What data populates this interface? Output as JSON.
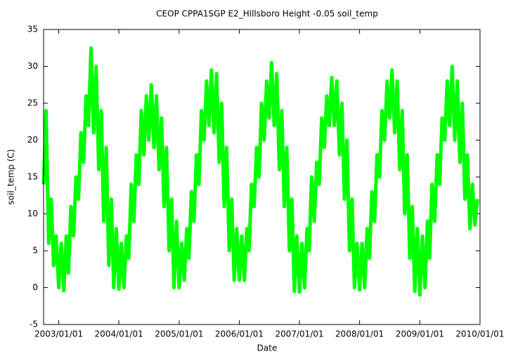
{
  "chart_data": {
    "type": "line",
    "title": "CEOP CPPA1SGP E2_Hillsboro Height -0.05 soil_temp",
    "x_label": "Date",
    "y_label": "soil_temp (C)",
    "xlim": [
      "2002/10/01",
      "2010/01/01"
    ],
    "xticks": [
      "2003/01/01",
      "2004/01/01",
      "2005/01/01",
      "2006/01/01",
      "2007/01/01",
      "2008/01/01",
      "2009/01/01",
      "2010/01/01"
    ],
    "ylim": [
      -5,
      35
    ],
    "yticks": [
      -5,
      0,
      5,
      10,
      15,
      20,
      25,
      30,
      35
    ],
    "grid": false,
    "x": [
      "2002/10/01",
      "2002/10/16",
      "2002/11/01",
      "2002/11/16",
      "2002/12/01",
      "2002/12/16",
      "2003/01/01",
      "2003/01/16",
      "2003/02/01",
      "2003/02/16",
      "2003/03/01",
      "2003/03/16",
      "2003/04/01",
      "2003/04/16",
      "2003/05/01",
      "2003/05/16",
      "2003/06/01",
      "2003/06/16",
      "2003/07/01",
      "2003/07/16",
      "2003/08/01",
      "2003/08/16",
      "2003/09/01",
      "2003/09/16",
      "2003/10/01",
      "2003/10/16",
      "2003/11/01",
      "2003/11/16",
      "2003/12/01",
      "2003/12/16",
      "2004/01/01",
      "2004/01/16",
      "2004/02/01",
      "2004/02/16",
      "2004/03/01",
      "2004/03/16",
      "2004/04/01",
      "2004/04/16",
      "2004/05/01",
      "2004/05/16",
      "2004/06/01",
      "2004/06/16",
      "2004/07/01",
      "2004/07/16",
      "2004/08/01",
      "2004/08/16",
      "2004/09/01",
      "2004/09/16",
      "2004/10/01",
      "2004/10/16",
      "2004/11/01",
      "2004/11/16",
      "2004/12/01",
      "2004/12/16",
      "2005/01/01",
      "2005/01/16",
      "2005/02/01",
      "2005/02/16",
      "2005/03/01",
      "2005/03/16",
      "2005/04/01",
      "2005/04/16",
      "2005/05/01",
      "2005/05/16",
      "2005/06/01",
      "2005/06/16",
      "2005/07/01",
      "2005/07/16",
      "2005/08/01",
      "2005/08/16",
      "2005/09/01",
      "2005/09/16",
      "2005/10/01",
      "2005/10/16",
      "2005/11/01",
      "2005/11/16",
      "2005/12/01",
      "2005/12/16",
      "2006/01/01",
      "2006/01/16",
      "2006/02/01",
      "2006/02/16",
      "2006/03/01",
      "2006/03/16",
      "2006/04/01",
      "2006/04/16",
      "2006/05/01",
      "2006/05/16",
      "2006/06/01",
      "2006/06/16",
      "2006/07/01",
      "2006/07/16",
      "2006/08/01",
      "2006/08/16",
      "2006/09/01",
      "2006/09/16",
      "2006/10/01",
      "2006/10/16",
      "2006/11/01",
      "2006/11/16",
      "2006/12/01",
      "2006/12/16",
      "2007/01/01",
      "2007/01/16",
      "2007/02/01",
      "2007/02/16",
      "2007/03/01",
      "2007/03/16",
      "2007/04/01",
      "2007/04/16",
      "2007/05/01",
      "2007/05/16",
      "2007/06/01",
      "2007/06/16",
      "2007/07/01",
      "2007/07/16",
      "2007/08/01",
      "2007/08/16",
      "2007/09/01",
      "2007/09/16",
      "2007/10/01",
      "2007/10/16",
      "2007/11/01",
      "2007/11/16",
      "2007/12/01",
      "2007/12/16",
      "2008/01/01",
      "2008/01/16",
      "2008/02/01",
      "2008/02/16",
      "2008/03/01",
      "2008/03/16",
      "2008/04/01",
      "2008/04/16",
      "2008/05/01",
      "2008/05/16",
      "2008/06/01",
      "2008/06/16",
      "2008/07/01",
      "2008/07/16",
      "2008/08/01",
      "2008/08/16",
      "2008/09/01",
      "2008/09/16",
      "2008/10/01",
      "2008/10/16",
      "2008/11/01",
      "2008/11/16",
      "2008/12/01",
      "2008/12/16",
      "2009/01/01",
      "2009/01/16",
      "2009/02/01",
      "2009/02/16",
      "2009/03/01",
      "2009/03/16",
      "2009/04/01",
      "2009/04/16",
      "2009/05/01",
      "2009/05/16",
      "2009/06/01",
      "2009/06/16",
      "2009/07/01",
      "2009/07/16",
      "2009/08/01",
      "2009/08/16",
      "2009/09/01",
      "2009/09/16",
      "2009/10/01",
      "2009/10/16",
      "2009/11/01",
      "2009/11/16",
      "2009/12/01",
      "2009/12/16"
    ],
    "series": [
      {
        "color": "#00ff00",
        "values": [
          14,
          24,
          6,
          12,
          3,
          7,
          0,
          6,
          -0.4,
          7,
          2,
          11,
          7,
          15,
          12,
          21,
          17,
          26,
          22,
          32.5,
          21,
          30,
          16,
          24,
          9,
          19,
          3,
          12,
          0,
          8,
          -0.2,
          6,
          0,
          7,
          4,
          14,
          9,
          18,
          14,
          24,
          18,
          26,
          20,
          27.5,
          19,
          26,
          16,
          23,
          11,
          19,
          5,
          12,
          0,
          9,
          0,
          6,
          1,
          8,
          4,
          13,
          9,
          18,
          14,
          24,
          20,
          28,
          22,
          29.5,
          21,
          29,
          17,
          25,
          11,
          19,
          5,
          12,
          1,
          8,
          1,
          7,
          1,
          8,
          5,
          14,
          11,
          19,
          15,
          25,
          20,
          28,
          23,
          30.5,
          22,
          29,
          16,
          24,
          11,
          19,
          5,
          12,
          -0.5,
          7,
          -0.6,
          6,
          0,
          8,
          5,
          15,
          9,
          17,
          14,
          23,
          19,
          26,
          22,
          28.5,
          22,
          28,
          18,
          25,
          12,
          20,
          5,
          12,
          0,
          6,
          -0.3,
          6,
          0,
          8,
          4,
          13,
          9,
          18,
          15,
          24,
          20,
          28,
          23,
          29.5,
          21,
          28,
          16,
          24,
          10,
          18,
          4,
          11,
          -0.5,
          8,
          -1,
          7,
          0,
          9,
          4,
          14,
          9,
          18,
          14,
          23,
          20,
          28,
          22,
          30,
          20,
          28,
          17,
          25,
          12,
          18,
          8,
          14,
          8.5,
          12
        ]
      }
    ]
  }
}
